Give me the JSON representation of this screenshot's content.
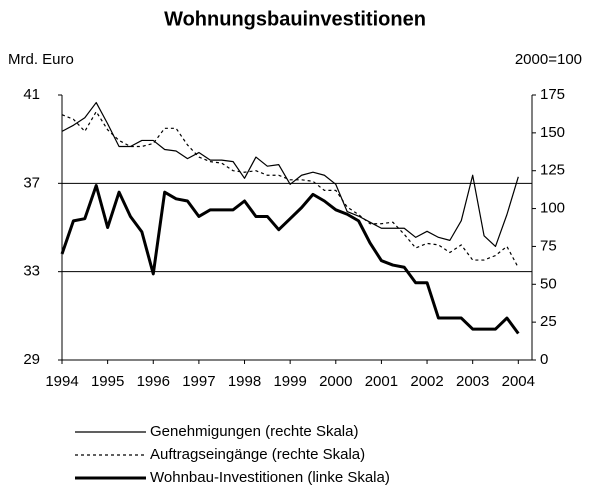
{
  "chart_data": {
    "type": "line",
    "title": "Wohnungsbauinvestitionen",
    "y_label": "Mrd. Euro",
    "y2_label": "2000=100",
    "x": [
      1994,
      1994.25,
      1994.5,
      1994.75,
      1995,
      1995.25,
      1995.5,
      1995.75,
      1996,
      1996.25,
      1996.5,
      1996.75,
      1997,
      1997.25,
      1997.5,
      1997.75,
      1998,
      1998.25,
      1998.5,
      1998.75,
      1999,
      1999.25,
      1999.5,
      1999.75,
      2000,
      2000.25,
      2000.5,
      2000.75,
      2001,
      2001.25,
      2001.5,
      2001.75,
      2002,
      2002.25,
      2002.5,
      2002.75,
      2003,
      2003.25,
      2003.5,
      2003.75,
      2004
    ],
    "xlim": [
      1994,
      2004.3
    ],
    "xticks": [
      1994,
      1995,
      1996,
      1997,
      1998,
      1999,
      2000,
      2001,
      2002,
      2003,
      2004
    ],
    "ylim": [
      29,
      41
    ],
    "yticks": [
      29,
      33,
      37,
      41
    ],
    "y2lim": [
      0,
      175
    ],
    "y2ticks": [
      0,
      25,
      50,
      75,
      100,
      125,
      150,
      175
    ],
    "grid": true,
    "series": [
      {
        "name": "Genehmigungen (rechte Skala)",
        "color": "#000000",
        "style": "solid",
        "line_width": 1.2,
        "axis": "y2",
        "values": [
          151,
          155,
          160,
          170,
          156,
          141,
          141,
          145,
          145,
          139,
          138,
          133,
          137,
          132,
          132,
          131,
          120,
          134,
          128,
          129,
          116,
          122,
          124,
          122,
          116,
          98,
          95,
          91,
          87,
          87,
          87,
          81,
          85,
          81,
          79,
          92,
          122,
          82,
          75,
          96,
          121
        ]
      },
      {
        "name": "Auftragseingänge (rechte Skala)",
        "color": "#000000",
        "style": "dashed",
        "line_width": 1.2,
        "axis": "y2",
        "values": [
          162,
          159,
          151,
          164,
          152,
          145,
          141,
          141,
          143,
          153,
          153,
          142,
          134,
          131,
          130,
          125,
          124,
          125,
          122,
          122,
          119,
          119,
          118,
          112,
          112,
          101,
          96,
          90,
          90,
          91,
          83,
          74,
          77,
          76,
          71,
          76,
          66,
          66,
          69,
          75,
          61
        ]
      },
      {
        "name": "Wohnbau-Investitionen (linke Skala)",
        "color": "#000000",
        "style": "solid",
        "line_width": 3,
        "axis": "y",
        "values": [
          33.8,
          35.3,
          35.4,
          36.9,
          35.0,
          36.6,
          35.5,
          34.8,
          32.9,
          36.6,
          36.3,
          36.2,
          35.5,
          35.8,
          35.8,
          35.8,
          36.2,
          35.5,
          35.5,
          34.9,
          35.4,
          35.9,
          36.5,
          36.2,
          35.8,
          35.6,
          35.3,
          34.3,
          33.5,
          33.3,
          33.2,
          32.5,
          32.5,
          30.9,
          30.9,
          30.9,
          30.4,
          30.4,
          30.4,
          30.9,
          30.2
        ]
      }
    ]
  }
}
